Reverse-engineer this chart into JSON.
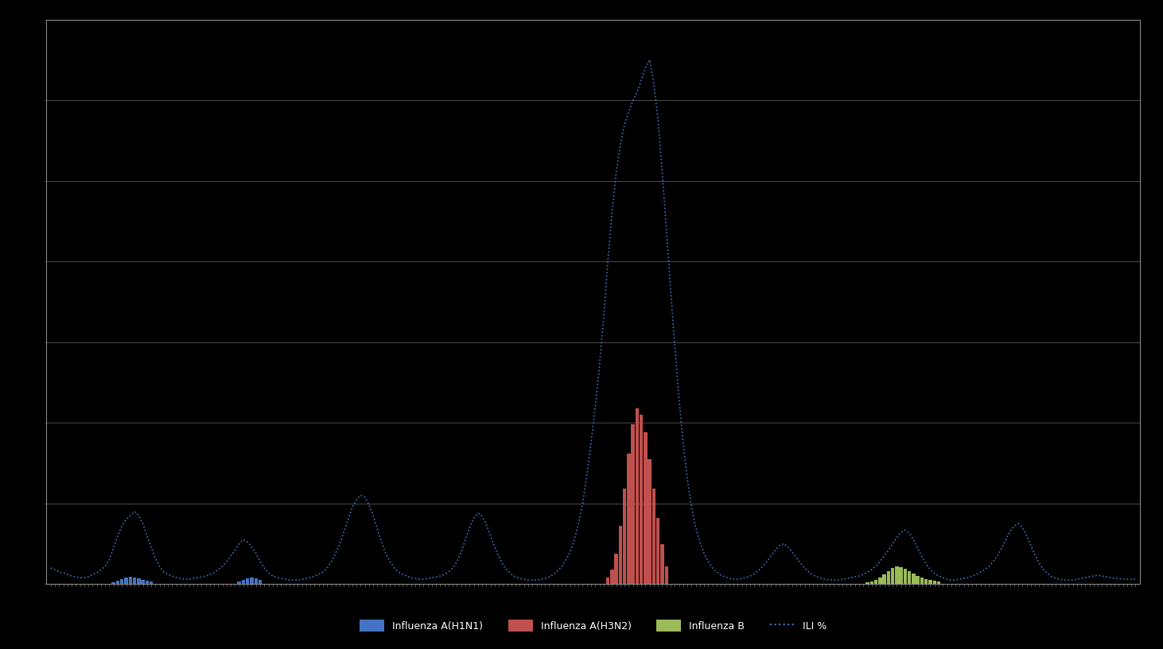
{
  "title": "",
  "background_color": "#000000",
  "plot_bg_color": "#000000",
  "grid_color": "#555555",
  "text_color": "#ffffff",
  "n_weeks": 260,
  "blue_bar_color": "#4472C4",
  "red_bar_color": "#C0504D",
  "yellow_bar_color": "#9BBB59",
  "dotted_line_color": "#4472C4",
  "legend_labels": [
    "Influenza A(H1N1)",
    "Influenza A(H3N2)",
    "Influenza B",
    "ILI %"
  ],
  "ylim_max": 700,
  "ytick_count": 7,
  "dotted_line_data": [
    20,
    18,
    15,
    14,
    12,
    10,
    9,
    8,
    8,
    9,
    12,
    14,
    18,
    22,
    30,
    45,
    60,
    72,
    80,
    85,
    90,
    85,
    75,
    60,
    45,
    32,
    22,
    15,
    12,
    10,
    8,
    7,
    6,
    6,
    7,
    8,
    9,
    10,
    12,
    14,
    18,
    22,
    28,
    35,
    42,
    50,
    55,
    52,
    46,
    38,
    28,
    20,
    14,
    10,
    8,
    7,
    6,
    5,
    5,
    5,
    6,
    7,
    8,
    10,
    12,
    15,
    20,
    28,
    38,
    50,
    65,
    80,
    95,
    105,
    110,
    108,
    98,
    85,
    68,
    52,
    38,
    28,
    20,
    15,
    12,
    10,
    8,
    7,
    6,
    6,
    7,
    8,
    9,
    10,
    12,
    15,
    20,
    28,
    40,
    55,
    70,
    82,
    88,
    84,
    74,
    60,
    46,
    34,
    24,
    17,
    12,
    9,
    7,
    6,
    5,
    5,
    5,
    6,
    7,
    9,
    12,
    16,
    22,
    30,
    40,
    55,
    75,
    100,
    135,
    175,
    220,
    270,
    330,
    400,
    460,
    510,
    545,
    570,
    585,
    600,
    610,
    625,
    640,
    650,
    620,
    575,
    510,
    440,
    365,
    295,
    230,
    175,
    130,
    95,
    70,
    52,
    38,
    28,
    20,
    15,
    11,
    9,
    7,
    6,
    6,
    7,
    8,
    10,
    13,
    17,
    22,
    28,
    35,
    42,
    48,
    50,
    46,
    40,
    33,
    26,
    20,
    15,
    11,
    9,
    7,
    6,
    5,
    5,
    5,
    6,
    7,
    8,
    9,
    10,
    12,
    15,
    18,
    22,
    28,
    35,
    42,
    50,
    58,
    64,
    67,
    63,
    55,
    44,
    34,
    25,
    18,
    13,
    10,
    8,
    6,
    5,
    5,
    6,
    7,
    8,
    10,
    12,
    15,
    18,
    22,
    28,
    35,
    44,
    55,
    65,
    72,
    75,
    70,
    60,
    48,
    36,
    26,
    18,
    13,
    9,
    7,
    6,
    5,
    5,
    5,
    6,
    7,
    8,
    9,
    10,
    11,
    10,
    9,
    8,
    7,
    7,
    6,
    6,
    6,
    6
  ],
  "red_bar_indices": [
    133,
    134,
    135,
    136,
    137,
    138,
    139,
    140,
    141,
    142,
    143,
    144,
    145,
    146,
    147
  ],
  "red_bar_heights": [
    8,
    18,
    38,
    72,
    118,
    162,
    198,
    218,
    210,
    188,
    155,
    118,
    82,
    50,
    22
  ],
  "blue_bar_indices": [
    15,
    16,
    17,
    18,
    19,
    20,
    21,
    22,
    23,
    24,
    45,
    46,
    47,
    48,
    49,
    50
  ],
  "blue_bar_heights": [
    2,
    4,
    6,
    8,
    9,
    8,
    7,
    5,
    4,
    3,
    3,
    5,
    7,
    8,
    7,
    5
  ],
  "yellow_bar_indices": [
    195,
    196,
    197,
    198,
    199,
    200,
    201,
    202,
    203,
    204,
    205,
    206,
    207,
    208,
    209,
    210,
    211,
    212
  ],
  "yellow_bar_heights": [
    2,
    3,
    5,
    8,
    12,
    16,
    20,
    22,
    21,
    19,
    16,
    13,
    10,
    8,
    6,
    5,
    4,
    3
  ]
}
